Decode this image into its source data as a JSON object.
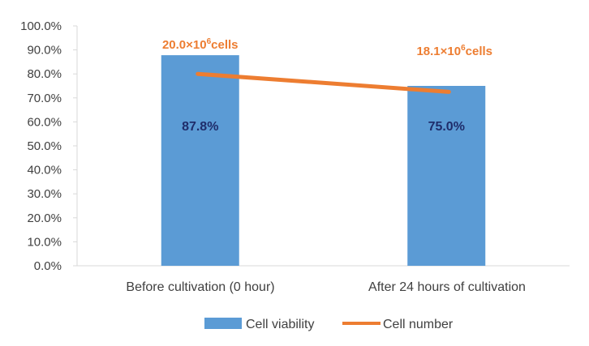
{
  "chart_data": {
    "type": "bar",
    "title": "",
    "xlabel": "",
    "ylabel": "",
    "ylim": [
      0,
      100
    ],
    "y_ticks": [
      "0.0%",
      "10.0%",
      "20.0%",
      "30.0%",
      "40.0%",
      "50.0%",
      "60.0%",
      "70.0%",
      "80.0%",
      "90.0%",
      "100.0%"
    ],
    "categories": [
      "Before cultivation (0 hour)",
      "After 24 hours of cultivation"
    ],
    "series": [
      {
        "name": "Cell viability",
        "type": "bar",
        "color": "#5b9bd5",
        "values": [
          87.8,
          75.0
        ],
        "labels": [
          "87.8%",
          "75.0%"
        ],
        "label_color": "#1f2d6b"
      },
      {
        "name": "Cell number",
        "type": "line",
        "color": "#ed7d31",
        "values": [
          80,
          72.5
        ],
        "labels": [
          {
            "base": "20.0×10",
            "exp": "6",
            "unit": "cells"
          },
          {
            "base": "18.1×10",
            "exp": "6",
            "unit": "cells"
          }
        ]
      }
    ],
    "legend": "bottom",
    "grid": false
  }
}
